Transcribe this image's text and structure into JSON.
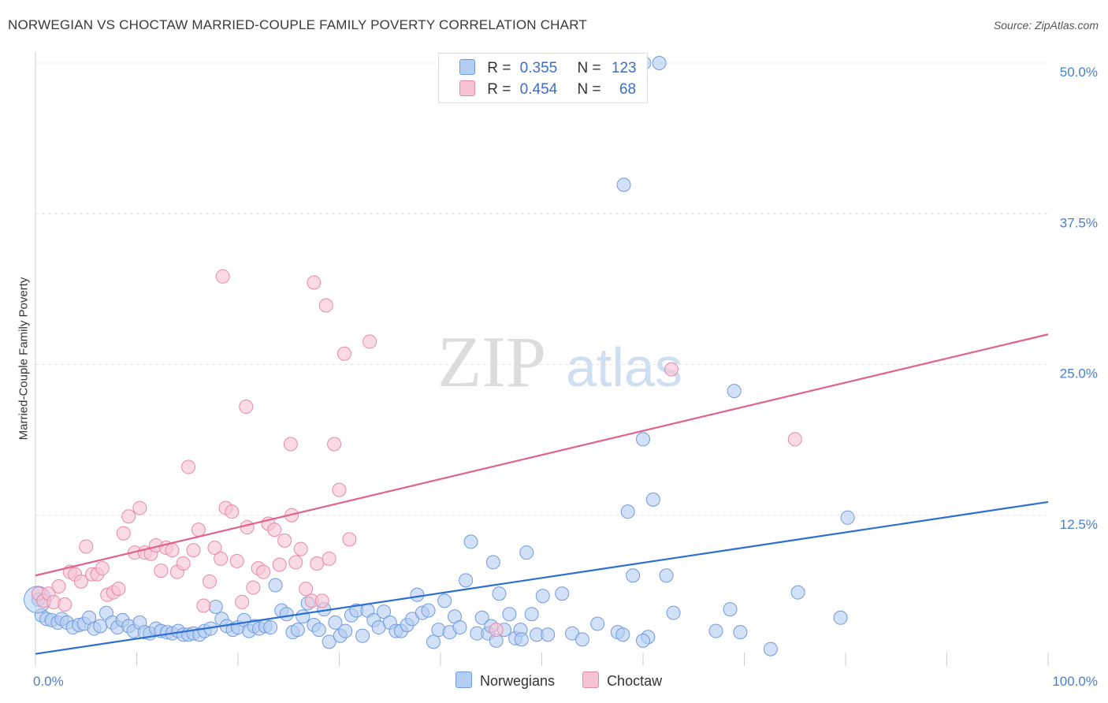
{
  "header": {
    "title": "NORWEGIAN VS CHOCTAW MARRIED-COUPLE FAMILY POVERTY CORRELATION CHART",
    "source": "Source: ZipAtlas.com"
  },
  "watermark": {
    "zip": "ZIP",
    "atlas": "atlas"
  },
  "colors": {
    "norwegians_fill": "#b4cdf2",
    "norwegians_stroke": "#6f9be0",
    "norwegians_line": "#2d6fd1",
    "choctaw_fill": "#f7c3d3",
    "choctaw_stroke": "#e889a8",
    "choctaw_line": "#e0628d",
    "tick_text": "#4a7fd0"
  },
  "legend": {
    "rows": [
      {
        "r_label": "R =",
        "r_value": "0.355",
        "n_label": "N =",
        "n_value": "123"
      },
      {
        "r_label": "R =",
        "r_value": "0.454",
        "n_label": "N =",
        "n_value": "68"
      }
    ],
    "bottom": [
      "Norwegians",
      "Choctaw"
    ]
  },
  "chart_data": {
    "type": "scatter",
    "title": "NORWEGIAN VS CHOCTAW MARRIED-COUPLE FAMILY POVERTY CORRELATION CHART",
    "xlabel": "",
    "ylabel": "Married-Couple Family Poverty",
    "xlim": [
      0,
      100
    ],
    "ylim": [
      0,
      50
    ],
    "x_tick_labels": [
      "0.0%",
      "100.0%"
    ],
    "y_ticks": [
      12.5,
      25.0,
      37.5,
      50.0
    ],
    "y_tick_labels": [
      "12.5%",
      "25.0%",
      "37.5%",
      "50.0%"
    ],
    "grid": true,
    "series": [
      {
        "name": "Norwegians",
        "r": 0.355,
        "n": 123,
        "trend": {
          "x": [
            0,
            100
          ],
          "y": [
            1.0,
            13.6
          ]
        },
        "points": [
          [
            0.3,
            5.5
          ],
          [
            0.6,
            4.2
          ],
          [
            1.1,
            3.9
          ],
          [
            1.6,
            3.8
          ],
          [
            2.2,
            3.6
          ],
          [
            2.6,
            3.9
          ],
          [
            3.1,
            3.6
          ],
          [
            3.7,
            3.2
          ],
          [
            4.3,
            3.4
          ],
          [
            4.8,
            3.5
          ],
          [
            5.3,
            4.0
          ],
          [
            5.8,
            3.1
          ],
          [
            6.4,
            3.3
          ],
          [
            7.0,
            4.4
          ],
          [
            7.6,
            3.6
          ],
          [
            8.1,
            3.2
          ],
          [
            8.6,
            3.8
          ],
          [
            9.2,
            3.3
          ],
          [
            9.7,
            2.9
          ],
          [
            10.3,
            3.6
          ],
          [
            10.8,
            2.8
          ],
          [
            11.3,
            2.7
          ],
          [
            11.9,
            3.1
          ],
          [
            12.4,
            2.9
          ],
          [
            13.0,
            2.8
          ],
          [
            13.5,
            2.7
          ],
          [
            14.1,
            2.9
          ],
          [
            14.6,
            2.6
          ],
          [
            15.1,
            2.6
          ],
          [
            15.6,
            2.7
          ],
          [
            16.2,
            2.6
          ],
          [
            16.7,
            2.9
          ],
          [
            17.3,
            3.1
          ],
          [
            17.8,
            4.9
          ],
          [
            18.4,
            3.9
          ],
          [
            18.9,
            3.3
          ],
          [
            19.5,
            3.0
          ],
          [
            20.0,
            3.2
          ],
          [
            20.6,
            3.8
          ],
          [
            21.1,
            2.9
          ],
          [
            21.6,
            3.3
          ],
          [
            22.1,
            3.1
          ],
          [
            22.7,
            3.3
          ],
          [
            23.2,
            3.2
          ],
          [
            23.7,
            6.7
          ],
          [
            24.3,
            4.6
          ],
          [
            24.8,
            4.3
          ],
          [
            25.4,
            2.8
          ],
          [
            25.9,
            3.0
          ],
          [
            26.4,
            4.1
          ],
          [
            26.9,
            5.2
          ],
          [
            27.5,
            3.4
          ],
          [
            28.0,
            3.0
          ],
          [
            28.5,
            4.7
          ],
          [
            29.0,
            2.0
          ],
          [
            29.6,
            3.6
          ],
          [
            30.1,
            2.5
          ],
          [
            30.6,
            2.9
          ],
          [
            31.2,
            4.2
          ],
          [
            31.7,
            4.6
          ],
          [
            32.3,
            2.5
          ],
          [
            32.8,
            4.6
          ],
          [
            33.4,
            3.8
          ],
          [
            33.9,
            3.2
          ],
          [
            34.4,
            4.5
          ],
          [
            35.0,
            3.6
          ],
          [
            35.6,
            2.9
          ],
          [
            36.1,
            2.9
          ],
          [
            36.7,
            3.4
          ],
          [
            37.2,
            3.9
          ],
          [
            37.7,
            5.9
          ],
          [
            38.2,
            4.4
          ],
          [
            38.8,
            4.6
          ],
          [
            39.3,
            2.0
          ],
          [
            39.8,
            3.0
          ],
          [
            40.4,
            5.4
          ],
          [
            40.9,
            2.8
          ],
          [
            41.4,
            4.1
          ],
          [
            41.9,
            3.2
          ],
          [
            42.5,
            7.1
          ],
          [
            43.0,
            10.3
          ],
          [
            43.6,
            2.7
          ],
          [
            44.1,
            4.0
          ],
          [
            44.7,
            2.7
          ],
          [
            45.2,
            8.6
          ],
          [
            45.8,
            6.0
          ],
          [
            46.3,
            3.0
          ],
          [
            46.8,
            4.3
          ],
          [
            47.4,
            2.3
          ],
          [
            47.9,
            3.0
          ],
          [
            48.5,
            9.4
          ],
          [
            49.0,
            4.3
          ],
          [
            49.5,
            2.6
          ],
          [
            50.1,
            5.8
          ],
          [
            50.6,
            2.6
          ],
          [
            52.0,
            6.0
          ],
          [
            53.0,
            2.7
          ],
          [
            54.0,
            2.2
          ],
          [
            55.5,
            3.5
          ],
          [
            57.5,
            2.8
          ],
          [
            58.5,
            12.8
          ],
          [
            59.0,
            7.5
          ],
          [
            60.5,
            2.4
          ],
          [
            62.3,
            7.5
          ],
          [
            63.0,
            4.4
          ],
          [
            67.2,
            2.9
          ],
          [
            68.6,
            4.7
          ],
          [
            69.6,
            2.8
          ],
          [
            60.0,
            2.1
          ],
          [
            72.6,
            1.4
          ],
          [
            75.3,
            6.1
          ],
          [
            79.5,
            4.0
          ],
          [
            80.2,
            12.3
          ],
          [
            69.0,
            22.8
          ],
          [
            60.1,
            50.0
          ],
          [
            61.6,
            50.0
          ],
          [
            58.1,
            39.9
          ],
          [
            60.0,
            18.8
          ],
          [
            61.0,
            13.8
          ],
          [
            45.0,
            3.3
          ],
          [
            45.5,
            2.1
          ],
          [
            58.0,
            2.6
          ],
          [
            48.0,
            2.2
          ]
        ]
      },
      {
        "name": "Choctaw",
        "r": 0.454,
        "n": 68,
        "trend": {
          "x": [
            0,
            100
          ],
          "y": [
            7.5,
            27.5
          ]
        },
        "points": [
          [
            0.3,
            6.0
          ],
          [
            0.8,
            5.4
          ],
          [
            1.3,
            6.0
          ],
          [
            1.8,
            5.3
          ],
          [
            2.3,
            6.6
          ],
          [
            2.9,
            5.1
          ],
          [
            3.4,
            7.8
          ],
          [
            3.9,
            7.6
          ],
          [
            4.5,
            7.0
          ],
          [
            5.0,
            9.9
          ],
          [
            5.6,
            7.6
          ],
          [
            6.1,
            7.6
          ],
          [
            6.6,
            8.1
          ],
          [
            7.1,
            5.9
          ],
          [
            7.7,
            6.1
          ],
          [
            8.2,
            6.4
          ],
          [
            8.7,
            11.0
          ],
          [
            9.2,
            12.4
          ],
          [
            9.8,
            9.4
          ],
          [
            10.3,
            13.1
          ],
          [
            10.8,
            9.4
          ],
          [
            11.4,
            9.3
          ],
          [
            11.9,
            10.0
          ],
          [
            12.4,
            7.9
          ],
          [
            12.9,
            9.8
          ],
          [
            13.5,
            9.6
          ],
          [
            14.0,
            7.8
          ],
          [
            14.6,
            8.5
          ],
          [
            15.1,
            16.5
          ],
          [
            15.6,
            9.6
          ],
          [
            16.1,
            11.3
          ],
          [
            16.6,
            5.0
          ],
          [
            17.2,
            7.0
          ],
          [
            17.7,
            9.8
          ],
          [
            18.3,
            8.9
          ],
          [
            18.8,
            13.1
          ],
          [
            19.4,
            12.8
          ],
          [
            19.9,
            8.7
          ],
          [
            20.4,
            5.3
          ],
          [
            20.9,
            11.5
          ],
          [
            21.5,
            6.5
          ],
          [
            22.0,
            8.1
          ],
          [
            22.5,
            7.8
          ],
          [
            23.0,
            11.8
          ],
          [
            23.6,
            11.3
          ],
          [
            24.1,
            8.4
          ],
          [
            24.6,
            10.4
          ],
          [
            25.2,
            18.4
          ],
          [
            25.7,
            8.6
          ],
          [
            26.2,
            9.7
          ],
          [
            26.7,
            6.4
          ],
          [
            27.3,
            5.4
          ],
          [
            27.8,
            8.5
          ],
          [
            28.3,
            5.4
          ],
          [
            29.0,
            8.9
          ],
          [
            29.5,
            18.4
          ],
          [
            30.0,
            14.6
          ],
          [
            30.5,
            25.9
          ],
          [
            31.0,
            10.5
          ],
          [
            18.5,
            32.3
          ],
          [
            33.0,
            26.9
          ],
          [
            20.8,
            21.5
          ],
          [
            25.3,
            12.5
          ],
          [
            27.5,
            31.8
          ],
          [
            28.7,
            29.9
          ],
          [
            62.8,
            24.6
          ],
          [
            75.0,
            18.8
          ],
          [
            45.5,
            3.0
          ]
        ]
      }
    ]
  }
}
